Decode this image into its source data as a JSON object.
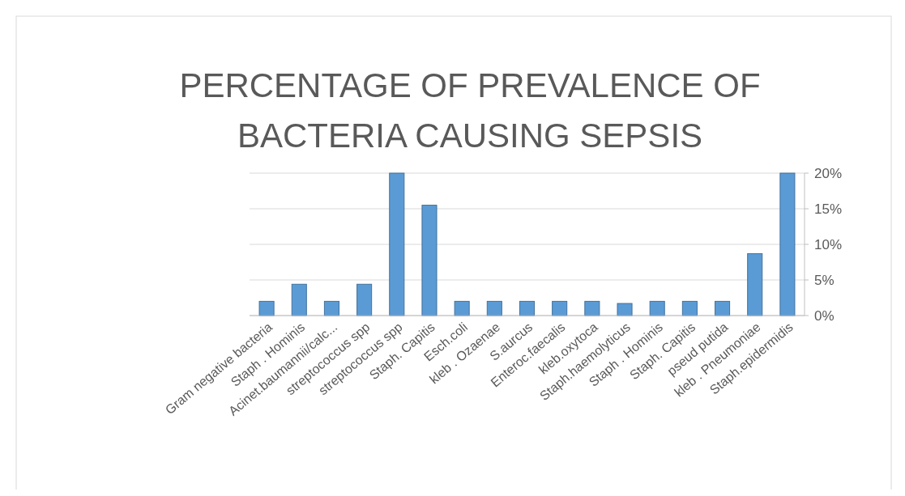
{
  "chart_data": {
    "type": "bar",
    "title": "PERCENTAGE OF PREVALENCE OF BACTERIA CAUSING SEPSIS",
    "categories": [
      "Gram negative bacteria",
      "Staph . Hominis",
      "Acinet.baumannii/calc...",
      "streptococcus spp",
      "streptococcus spp",
      "Staph. Capitis",
      "Esch.coli",
      "kleb . Ozaenae",
      "S.aurcus",
      "Enteroc.faecalis",
      "kleb.oxytoca",
      "Staph.haemolyticus",
      "Staph . Hominis",
      "Staph. Capitis",
      "pseud putida",
      "kleb . Pneumoniae",
      "Staph.epidermidis"
    ],
    "values": [
      2,
      4.4,
      2,
      4.4,
      20,
      15.5,
      2,
      2,
      2,
      2,
      2,
      1.7,
      2,
      2,
      2,
      8.7,
      20
    ],
    "color": "#5b9bd5",
    "ylim": [
      0,
      20
    ],
    "yticks": [
      {
        "value": 0,
        "label": "0%"
      },
      {
        "value": 5,
        "label": "5%"
      },
      {
        "value": 10,
        "label": "10%"
      },
      {
        "value": 15,
        "label": "15%"
      },
      {
        "value": 20,
        "label": "20%"
      }
    ],
    "grid": true
  }
}
